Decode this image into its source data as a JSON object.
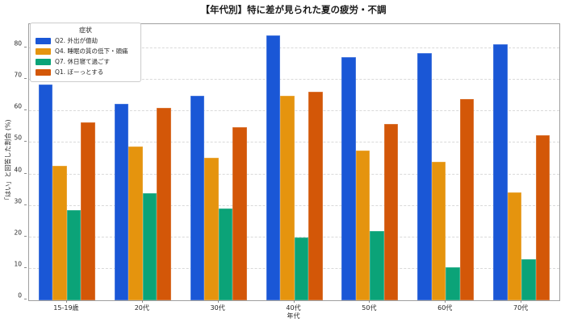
{
  "chart_data": {
    "type": "bar",
    "title": "【年代別】特に差が見られた夏の疲労・不調",
    "legend_title": "症状",
    "xlabel": "年代",
    "ylabel": "「はい」と回答した割合 (%)",
    "categories": [
      "15-19歳",
      "20代",
      "30代",
      "40代",
      "50代",
      "60代",
      "70代"
    ],
    "series": [
      {
        "name": "Q2. 外出が億劫",
        "color": "#1a57d6",
        "values": [
          68.5,
          62.5,
          65.0,
          84.0,
          77.3,
          78.5,
          81.2
        ]
      },
      {
        "name": "Q4. 睡眠の質の低下・頭痛",
        "color": "#e5940e",
        "values": [
          42.8,
          48.9,
          45.3,
          64.9,
          47.6,
          43.9,
          34.3
        ]
      },
      {
        "name": "Q7. 休日寝て過ごす",
        "color": "#0ba378",
        "values": [
          28.7,
          34.1,
          29.2,
          20.0,
          21.9,
          10.4,
          13.0
        ]
      },
      {
        "name": "Q1. ぼーっとする",
        "color": "#d35708",
        "values": [
          56.4,
          61.2,
          55.1,
          66.3,
          56.1,
          64.0,
          52.5
        ]
      }
    ],
    "yticks": [
      0,
      10,
      20,
      30,
      40,
      50,
      60,
      70,
      80
    ],
    "ylim": [
      0,
      87.7
    ],
    "grid": "horizontal-dashed",
    "legend_position": "upper-left"
  }
}
